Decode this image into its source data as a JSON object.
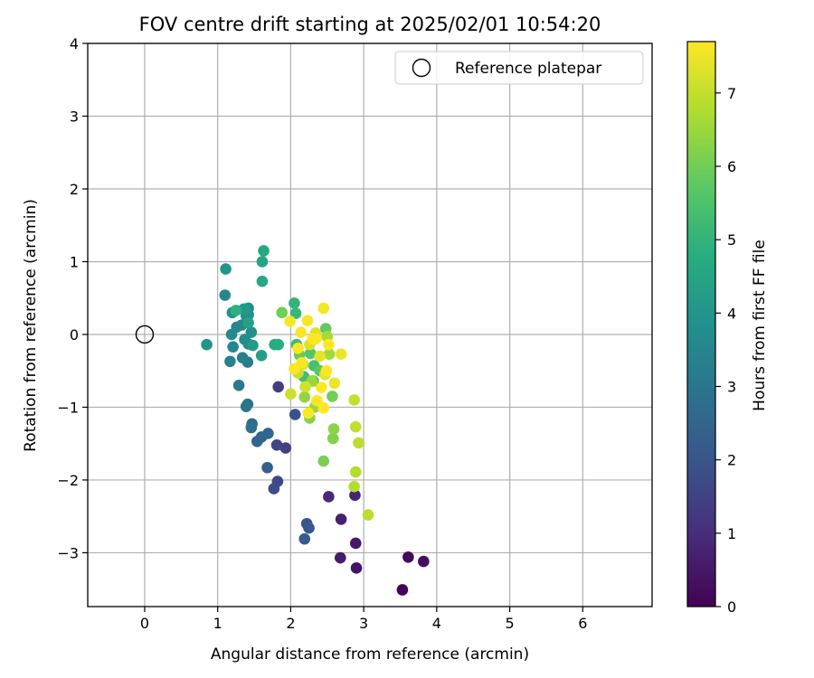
{
  "chart_data": {
    "type": "scatter",
    "title": "FOV centre drift starting at 2025/02/01 10:54:20",
    "xlabel": "Angular distance from reference (arcmin)",
    "ylabel": "Rotation from reference (arcmin)",
    "xlim": [
      -0.78,
      6.95
    ],
    "ylim": [
      -3.74,
      4.0
    ],
    "xticks": [
      0,
      1,
      2,
      3,
      4,
      5,
      6
    ],
    "yticks": [
      -3,
      -2,
      -1,
      0,
      1,
      2,
      3,
      4
    ],
    "xtick_labels": [
      "0",
      "1",
      "2",
      "3",
      "4",
      "5",
      "6"
    ],
    "ytick_labels": [
      "−3",
      "−2",
      "−1",
      "0",
      "1",
      "2",
      "3",
      "4"
    ],
    "grid": true,
    "legend": {
      "position": "top-right",
      "entries": [
        {
          "label": "Reference platepar",
          "marker": "open-circle"
        }
      ]
    },
    "reference_point": {
      "x": 0,
      "y": 0
    },
    "colorbar": {
      "label": "Hours from first FF file",
      "colormap": "viridis",
      "range": [
        0,
        7.7
      ],
      "ticks": [
        0,
        1,
        2,
        3,
        4,
        5,
        6,
        7
      ],
      "tick_labels": [
        "0",
        "1",
        "2",
        "3",
        "4",
        "5",
        "6",
        "7"
      ]
    },
    "series": [
      {
        "points": [
          {
            "x": 3.53,
            "y": -3.51,
            "h": 0.1
          },
          {
            "x": 3.61,
            "y": -3.06,
            "h": 0.2
          },
          {
            "x": 3.82,
            "y": -3.12,
            "h": 0.3
          },
          {
            "x": 2.9,
            "y": -3.21,
            "h": 0.4
          },
          {
            "x": 2.89,
            "y": -2.87,
            "h": 0.5
          },
          {
            "x": 2.68,
            "y": -3.07,
            "h": 0.6
          },
          {
            "x": 2.69,
            "y": -2.54,
            "h": 0.7
          },
          {
            "x": 2.88,
            "y": -2.21,
            "h": 0.8
          },
          {
            "x": 2.52,
            "y": -2.23,
            "h": 0.9
          },
          {
            "x": 1.83,
            "y": -0.72,
            "h": 1.4
          },
          {
            "x": 1.93,
            "y": -1.56,
            "h": 1.5
          },
          {
            "x": 1.81,
            "y": -1.52,
            "h": 1.6
          },
          {
            "x": 1.82,
            "y": -2.02,
            "h": 1.7
          },
          {
            "x": 1.77,
            "y": -2.12,
            "h": 1.8
          },
          {
            "x": 2.06,
            "y": -1.1,
            "h": 1.9
          },
          {
            "x": 2.22,
            "y": -2.6,
            "h": 2.0
          },
          {
            "x": 2.25,
            "y": -2.66,
            "h": 2.1
          },
          {
            "x": 2.19,
            "y": -2.81,
            "h": 2.2
          },
          {
            "x": 1.68,
            "y": -1.83,
            "h": 2.3
          },
          {
            "x": 1.6,
            "y": -1.41,
            "h": 2.4
          },
          {
            "x": 1.54,
            "y": -1.47,
            "h": 2.5
          },
          {
            "x": 1.69,
            "y": -1.36,
            "h": 2.6
          },
          {
            "x": 1.47,
            "y": -1.23,
            "h": 2.7
          },
          {
            "x": 1.46,
            "y": -1.28,
            "h": 2.8
          },
          {
            "x": 1.41,
            "y": -0.96,
            "h": 2.9
          },
          {
            "x": 1.39,
            "y": -0.99,
            "h": 3.0
          },
          {
            "x": 1.29,
            "y": -0.7,
            "h": 3.1
          },
          {
            "x": 1.41,
            "y": -0.38,
            "h": 3.2
          },
          {
            "x": 1.34,
            "y": -0.32,
            "h": 3.3
          },
          {
            "x": 1.17,
            "y": -0.37,
            "h": 3.4
          },
          {
            "x": 1.21,
            "y": -0.17,
            "h": 3.5
          },
          {
            "x": 1.1,
            "y": 0.54,
            "h": 3.5
          },
          {
            "x": 1.19,
            "y": 0.0,
            "h": 3.6
          },
          {
            "x": 1.26,
            "y": 0.1,
            "h": 3.6
          },
          {
            "x": 1.33,
            "y": 0.13,
            "h": 3.6
          },
          {
            "x": 1.37,
            "y": -0.07,
            "h": 3.7
          },
          {
            "x": 1.42,
            "y": -0.13,
            "h": 3.7
          },
          {
            "x": 1.39,
            "y": 0.26,
            "h": 3.7
          },
          {
            "x": 1.46,
            "y": 0.03,
            "h": 3.8
          },
          {
            "x": 1.42,
            "y": 0.36,
            "h": 3.8
          },
          {
            "x": 1.42,
            "y": 0.27,
            "h": 3.9
          },
          {
            "x": 1.2,
            "y": 0.3,
            "h": 3.9
          },
          {
            "x": 0.85,
            "y": -0.14,
            "h": 4.0
          },
          {
            "x": 1.11,
            "y": 0.9,
            "h": 4.0
          },
          {
            "x": 1.36,
            "y": 0.35,
            "h": 4.1
          },
          {
            "x": 1.48,
            "y": -0.15,
            "h": 4.1
          },
          {
            "x": 1.6,
            "y": -0.29,
            "h": 4.3
          },
          {
            "x": 1.42,
            "y": 0.16,
            "h": 4.4
          },
          {
            "x": 1.61,
            "y": 1.0,
            "h": 4.5
          },
          {
            "x": 1.63,
            "y": 1.15,
            "h": 4.6
          },
          {
            "x": 1.61,
            "y": 0.73,
            "h": 4.6
          },
          {
            "x": 1.78,
            "y": -0.14,
            "h": 4.7
          },
          {
            "x": 1.83,
            "y": -0.14,
            "h": 4.8
          },
          {
            "x": 1.25,
            "y": 0.33,
            "h": 4.9
          },
          {
            "x": 2.05,
            "y": 0.43,
            "h": 5.0
          },
          {
            "x": 2.07,
            "y": 0.29,
            "h": 5.1
          },
          {
            "x": 2.08,
            "y": -0.14,
            "h": 5.2
          },
          {
            "x": 2.18,
            "y": -0.58,
            "h": 5.3
          },
          {
            "x": 2.32,
            "y": -0.43,
            "h": 5.4
          },
          {
            "x": 2.31,
            "y": -0.64,
            "h": 5.5
          },
          {
            "x": 2.27,
            "y": -0.26,
            "h": 5.6
          },
          {
            "x": 2.4,
            "y": -0.5,
            "h": 5.7
          },
          {
            "x": 2.48,
            "y": 0.08,
            "h": 5.8
          },
          {
            "x": 2.12,
            "y": -0.28,
            "h": 5.9
          },
          {
            "x": 1.88,
            "y": 0.3,
            "h": 6.0
          },
          {
            "x": 2.57,
            "y": -0.85,
            "h": 6.0
          },
          {
            "x": 2.45,
            "y": -1.74,
            "h": 6.1
          },
          {
            "x": 2.58,
            "y": -1.43,
            "h": 6.2
          },
          {
            "x": 2.59,
            "y": -1.3,
            "h": 6.3
          },
          {
            "x": 2.26,
            "y": -1.15,
            "h": 6.3
          },
          {
            "x": 2.19,
            "y": -0.86,
            "h": 6.4
          },
          {
            "x": 2.33,
            "y": -1.0,
            "h": 6.5
          },
          {
            "x": 2.29,
            "y": -0.64,
            "h": 6.5
          },
          {
            "x": 2.53,
            "y": -0.27,
            "h": 6.6
          },
          {
            "x": 2.5,
            "y": -0.03,
            "h": 6.7
          },
          {
            "x": 2.87,
            "y": -2.09,
            "h": 6.8
          },
          {
            "x": 2.89,
            "y": -1.89,
            "h": 6.8
          },
          {
            "x": 2.93,
            "y": -1.49,
            "h": 6.9
          },
          {
            "x": 3.06,
            "y": -2.48,
            "h": 6.9
          },
          {
            "x": 2.89,
            "y": -1.27,
            "h": 7.0
          },
          {
            "x": 2.87,
            "y": -0.9,
            "h": 7.0
          },
          {
            "x": 2.0,
            "y": -0.82,
            "h": 7.1
          },
          {
            "x": 2.1,
            "y": -0.53,
            "h": 7.1
          },
          {
            "x": 2.2,
            "y": -0.72,
            "h": 7.2
          },
          {
            "x": 2.17,
            "y": -0.41,
            "h": 7.2
          },
          {
            "x": 2.26,
            "y": -0.14,
            "h": 7.3
          },
          {
            "x": 2.34,
            "y": 0.02,
            "h": 7.3
          },
          {
            "x": 2.4,
            "y": -0.3,
            "h": 7.4
          },
          {
            "x": 2.47,
            "y": -0.55,
            "h": 7.4
          },
          {
            "x": 2.6,
            "y": -0.67,
            "h": 7.5
          },
          {
            "x": 2.69,
            "y": -0.27,
            "h": 7.5
          },
          {
            "x": 2.45,
            "y": 0.36,
            "h": 7.6
          },
          {
            "x": 1.99,
            "y": 0.18,
            "h": 7.6
          },
          {
            "x": 2.14,
            "y": 0.03,
            "h": 7.6
          },
          {
            "x": 2.23,
            "y": 0.19,
            "h": 7.6
          },
          {
            "x": 2.3,
            "y": -0.06,
            "h": 7.7
          },
          {
            "x": 2.36,
            "y": -0.91,
            "h": 7.7
          },
          {
            "x": 2.42,
            "y": -0.73,
            "h": 7.7
          },
          {
            "x": 2.45,
            "y": -1.01,
            "h": 7.7
          },
          {
            "x": 2.1,
            "y": -0.19,
            "h": 7.7
          },
          {
            "x": 2.05,
            "y": -0.47,
            "h": 7.7
          },
          {
            "x": 2.24,
            "y": -1.08,
            "h": 7.7
          },
          {
            "x": 2.49,
            "y": -0.5,
            "h": 7.7
          },
          {
            "x": 2.52,
            "y": -0.14,
            "h": 7.7
          },
          {
            "x": 2.15,
            "y": -0.39,
            "h": 7.7
          },
          {
            "x": 2.35,
            "y": -0.06,
            "h": 7.7
          }
        ]
      }
    ]
  }
}
